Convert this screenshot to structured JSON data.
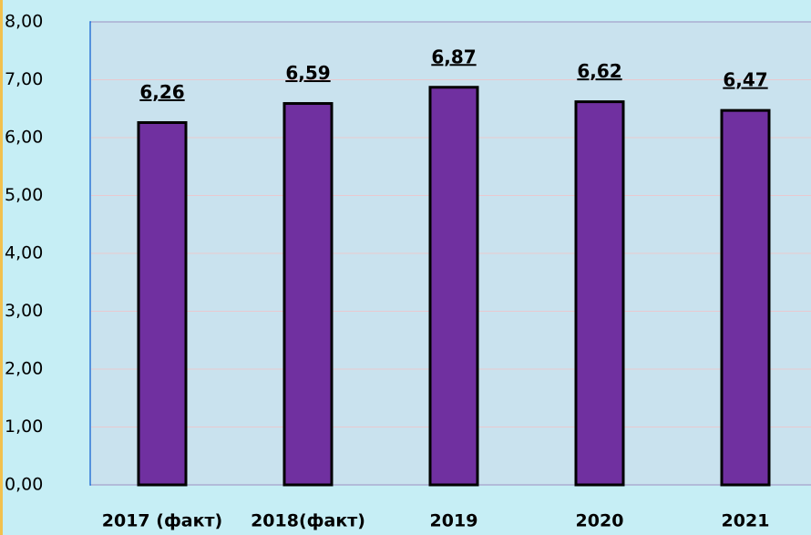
{
  "chart_data": {
    "type": "bar",
    "categories": [
      "2017 (факт)",
      "2018(факт)",
      "2019",
      "2020",
      "2021"
    ],
    "values": [
      6.26,
      6.59,
      6.87,
      6.62,
      6.47
    ],
    "value_labels": [
      "6,26",
      "6,59",
      "6,87",
      "6,62",
      "6,47"
    ],
    "color": "#7030a0",
    "ylim": [
      0,
      8
    ],
    "yticks": [
      {
        "value": 0,
        "label": "0,00"
      },
      {
        "value": 1,
        "label": "1,00"
      },
      {
        "value": 2,
        "label": "2,00"
      },
      {
        "value": 3,
        "label": "3,00"
      },
      {
        "value": 4,
        "label": "4,00"
      },
      {
        "value": 5,
        "label": "5,00"
      },
      {
        "value": 6,
        "label": "6,00"
      },
      {
        "value": 7,
        "label": "7,00"
      },
      {
        "value": 8,
        "label": "8,00"
      }
    ],
    "grid": true
  }
}
